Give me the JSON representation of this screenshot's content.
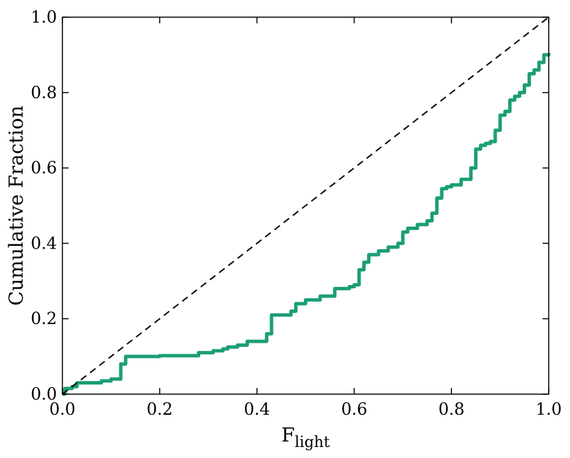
{
  "chart_data": {
    "type": "line",
    "title": "",
    "xlabel": {
      "main": "F",
      "sub": "light"
    },
    "ylabel": "Cumulative Fraction",
    "xlim": [
      0.0,
      1.0
    ],
    "ylim": [
      0.0,
      1.0
    ],
    "xticks": [
      "0.0",
      "0.2",
      "0.4",
      "0.6",
      "0.8",
      "1.0"
    ],
    "yticks": [
      "0.0",
      "0.2",
      "0.4",
      "0.6",
      "0.8",
      "1.0"
    ],
    "grid": false,
    "legend": "none",
    "series": [
      {
        "style": "solid",
        "color": "#1b9e77",
        "x": [
          0.0,
          0.005,
          0.02,
          0.03,
          0.05,
          0.08,
          0.1,
          0.11,
          0.12,
          0.13,
          0.16,
          0.2,
          0.25,
          0.28,
          0.31,
          0.33,
          0.34,
          0.36,
          0.38,
          0.4,
          0.42,
          0.43,
          0.45,
          0.47,
          0.48,
          0.5,
          0.53,
          0.56,
          0.59,
          0.6,
          0.61,
          0.62,
          0.63,
          0.65,
          0.67,
          0.69,
          0.7,
          0.71,
          0.73,
          0.75,
          0.76,
          0.77,
          0.78,
          0.79,
          0.8,
          0.82,
          0.84,
          0.85,
          0.86,
          0.87,
          0.88,
          0.89,
          0.9,
          0.91,
          0.92,
          0.93,
          0.94,
          0.95,
          0.96,
          0.97,
          0.98,
          0.99,
          1.0
        ],
        "y": [
          0.0,
          0.015,
          0.02,
          0.03,
          0.03,
          0.035,
          0.04,
          0.04,
          0.08,
          0.1,
          0.1,
          0.102,
          0.102,
          0.11,
          0.115,
          0.12,
          0.125,
          0.13,
          0.14,
          0.14,
          0.16,
          0.21,
          0.21,
          0.22,
          0.24,
          0.25,
          0.26,
          0.28,
          0.285,
          0.29,
          0.33,
          0.35,
          0.37,
          0.38,
          0.39,
          0.4,
          0.43,
          0.44,
          0.45,
          0.46,
          0.48,
          0.52,
          0.545,
          0.55,
          0.555,
          0.57,
          0.6,
          0.65,
          0.66,
          0.665,
          0.67,
          0.7,
          0.74,
          0.75,
          0.78,
          0.79,
          0.8,
          0.82,
          0.85,
          0.86,
          0.88,
          0.9,
          0.905
        ]
      },
      {
        "style": "dashed",
        "color": "#000000",
        "x": [
          0.0,
          1.0
        ],
        "y": [
          0.0,
          1.0
        ]
      }
    ]
  }
}
